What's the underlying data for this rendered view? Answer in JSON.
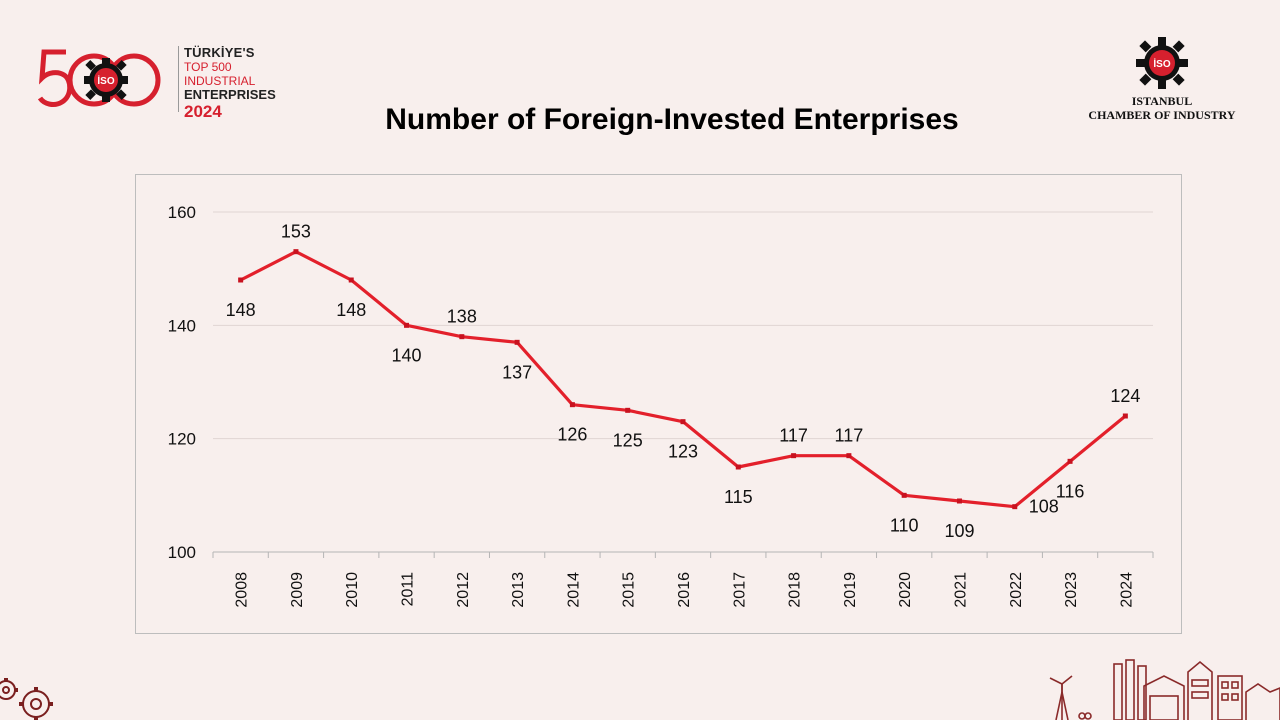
{
  "header": {
    "badge_number": "500",
    "badge_emblem_text": "İSO",
    "badge_line1": "TÜRKİYE'S",
    "badge_line2": "TOP 500 INDUSTRIAL",
    "badge_line3": "ENTERPRISES",
    "badge_year": "2024",
    "org_emblem_text": "İSO",
    "org_line1": "ISTANBUL",
    "org_line2": "CHAMBER OF INDUSTRY"
  },
  "colors": {
    "accent": "#d6202e",
    "line": "#e3202b",
    "background": "#f8efed"
  },
  "chart_data": {
    "type": "line",
    "title": "Number of Foreign-Invested Enterprises",
    "categories": [
      "2008",
      "2009",
      "2010",
      "2011",
      "2012",
      "2013",
      "2014",
      "2015",
      "2016",
      "2017",
      "2018",
      "2019",
      "2020",
      "2021",
      "2022",
      "2023",
      "2024"
    ],
    "series": [
      {
        "name": "Number of Foreign-Invested Enterprises",
        "values": [
          148,
          153,
          148,
          140,
          138,
          137,
          126,
          125,
          123,
          115,
          117,
          117,
          110,
          109,
          108,
          116,
          124
        ]
      }
    ],
    "label_positions": [
      "below",
      "above",
      "below",
      "below",
      "above",
      "below",
      "below",
      "below",
      "below",
      "below",
      "above",
      "above",
      "below",
      "below",
      "right",
      "below",
      "above"
    ],
    "yticks": [
      100,
      120,
      140,
      160
    ],
    "ylim": [
      100,
      160
    ],
    "xlabel": "",
    "ylabel": "",
    "grid": true,
    "legend": "none"
  }
}
